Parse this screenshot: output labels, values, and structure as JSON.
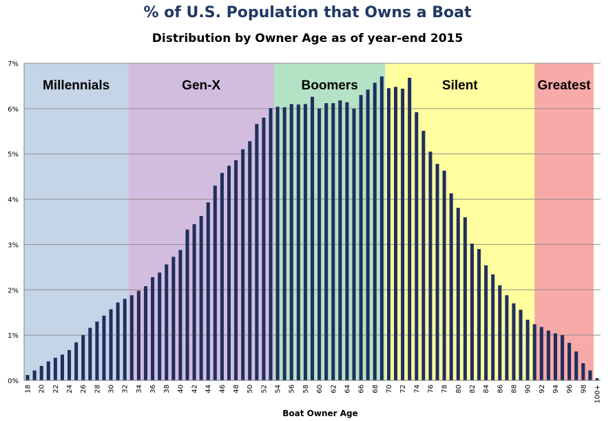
{
  "chart_data": {
    "type": "bar",
    "title": "% of U.S. Population that Owns a Boat",
    "subtitle": "Distribution by Owner Age as of year-end 2015",
    "xlabel": "Boat Owner Age",
    "ylabel": "",
    "ylim": [
      0,
      7
    ],
    "yticks": [
      "0%",
      "1%",
      "2%",
      "3%",
      "4%",
      "5%",
      "6%",
      "7%"
    ],
    "grid": true,
    "categories": [
      "18",
      "19",
      "20",
      "21",
      "22",
      "23",
      "24",
      "25",
      "26",
      "27",
      "28",
      "29",
      "30",
      "31",
      "32",
      "33",
      "34",
      "35",
      "36",
      "37",
      "38",
      "39",
      "40",
      "41",
      "42",
      "43",
      "44",
      "45",
      "46",
      "47",
      "48",
      "49",
      "50",
      "51",
      "52",
      "53",
      "54",
      "55",
      "56",
      "57",
      "58",
      "59",
      "60",
      "61",
      "62",
      "63",
      "64",
      "65",
      "66",
      "67",
      "68",
      "69",
      "70",
      "71",
      "72",
      "73",
      "74",
      "75",
      "76",
      "77",
      "78",
      "79",
      "80",
      "81",
      "82",
      "83",
      "84",
      "85",
      "86",
      "87",
      "88",
      "89",
      "90",
      "91",
      "92",
      "93",
      "94",
      "95",
      "96",
      "97",
      "98",
      "99",
      "100+"
    ],
    "xtick_labels": [
      "18",
      "",
      "20",
      "",
      "22",
      "",
      "24",
      "",
      "26",
      "",
      "28",
      "",
      "30",
      "",
      "32",
      "",
      "34",
      "",
      "36",
      "",
      "38",
      "",
      "40",
      "",
      "42",
      "",
      "44",
      "",
      "46",
      "",
      "48",
      "",
      "50",
      "",
      "52",
      "",
      "54",
      "",
      "56",
      "",
      "58",
      "",
      "60",
      "",
      "62",
      "",
      "64",
      "",
      "66",
      "",
      "68",
      "",
      "70",
      "",
      "72",
      "",
      "74",
      "",
      "76",
      "",
      "78",
      "",
      "80",
      "",
      "82",
      "",
      "84",
      "",
      "86",
      "",
      "88",
      "",
      "90",
      "",
      "92",
      "",
      "94",
      "",
      "96",
      "",
      "98",
      "",
      "100+"
    ],
    "values": [
      0.12,
      0.22,
      0.32,
      0.42,
      0.5,
      0.57,
      0.67,
      0.84,
      1.0,
      1.16,
      1.3,
      1.43,
      1.57,
      1.72,
      1.8,
      1.88,
      1.98,
      2.08,
      2.28,
      2.38,
      2.56,
      2.73,
      2.88,
      3.33,
      3.45,
      3.63,
      3.93,
      4.3,
      4.58,
      4.74,
      4.86,
      5.1,
      5.28,
      5.66,
      5.8,
      6.01,
      6.04,
      6.03,
      6.1,
      6.09,
      6.1,
      6.26,
      6.0,
      6.12,
      6.12,
      6.18,
      6.14,
      6.0,
      6.3,
      6.42,
      6.57,
      6.71,
      6.45,
      6.48,
      6.44,
      6.68,
      5.92,
      5.51,
      5.05,
      4.78,
      4.63,
      4.13,
      3.81,
      3.6,
      3.02,
      2.9,
      2.54,
      2.34,
      2.1,
      1.88,
      1.7,
      1.56,
      1.34,
      1.24,
      1.18,
      1.1,
      1.04,
      1.0,
      0.83,
      0.64,
      0.38,
      0.22,
      0.05
    ],
    "bar_color": "#1f2f5e",
    "eras": [
      {
        "name": "Millennials",
        "start_age": 18,
        "end_age": 33,
        "color": "#c5d5e8"
      },
      {
        "name": "Gen-X",
        "start_age": 33,
        "end_age": 54,
        "color": "#d3bddf"
      },
      {
        "name": "Boomers",
        "start_age": 54,
        "end_age": 70,
        "color": "#b4e2c5"
      },
      {
        "name": "Silent",
        "start_age": 70,
        "end_age": 91.5,
        "color": "#ffff9f"
      },
      {
        "name": "Greatest",
        "start_age": 91.5,
        "end_age": 100,
        "color": "#f8aaa8"
      }
    ]
  }
}
